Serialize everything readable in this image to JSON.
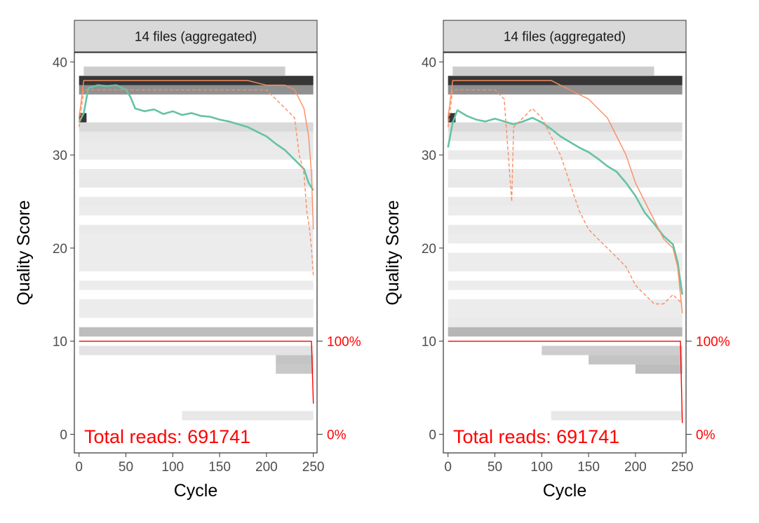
{
  "colors": {
    "mean": "#66c2a5",
    "quantile": "#fc8d62",
    "cumulative": "#ff0000",
    "strip_fill": "#d9d9d9",
    "panel_border": "#333333",
    "axis_text": "#4d4d4d"
  },
  "chart_data": [
    {
      "type": "line",
      "strip_title": "14 files (aggregated)",
      "xlabel": "Cycle",
      "ylabel": "Quality Score",
      "xlim": [
        -5,
        254
      ],
      "ylim": [
        -2,
        41
      ],
      "x_ticks": [
        0,
        50,
        100,
        150,
        200,
        250
      ],
      "y_ticks": [
        0,
        10,
        20,
        30,
        40
      ],
      "right_axis_labels": [
        {
          "y": 10,
          "label": "100%"
        },
        {
          "y": 0,
          "label": "0%"
        }
      ],
      "annotation": "Total reads: 691741",
      "grid": false,
      "heatmap_rows": [
        {
          "q": 38,
          "x": [
            0,
            250
          ],
          "intensity": 0.85
        },
        {
          "q": 37,
          "x": [
            0,
            250
          ],
          "intensity": 0.45
        },
        {
          "q": 39,
          "x": [
            5,
            220
          ],
          "intensity": 0.18
        },
        {
          "q": 34,
          "x": [
            0,
            8
          ],
          "intensity": 0.85
        },
        {
          "q": 33,
          "x": [
            0,
            250
          ],
          "intensity": 0.12
        },
        {
          "q": 32,
          "x": [
            0,
            250
          ],
          "intensity": 0.06
        },
        {
          "q": 31,
          "x": [
            0,
            250
          ],
          "intensity": 0.05
        },
        {
          "q": 30,
          "x": [
            0,
            250
          ],
          "intensity": 0.05
        },
        {
          "q": 28,
          "x": [
            0,
            250
          ],
          "intensity": 0.05
        },
        {
          "q": 27,
          "x": [
            0,
            250
          ],
          "intensity": 0.06
        },
        {
          "q": 25,
          "x": [
            0,
            250
          ],
          "intensity": 0.05
        },
        {
          "q": 24,
          "x": [
            0,
            250
          ],
          "intensity": 0.04
        },
        {
          "q": 22,
          "x": [
            0,
            250
          ],
          "intensity": 0.05
        },
        {
          "q": 21,
          "x": [
            0,
            250
          ],
          "intensity": 0.04
        },
        {
          "q": 20,
          "x": [
            0,
            250
          ],
          "intensity": 0.04
        },
        {
          "q": 19,
          "x": [
            0,
            250
          ],
          "intensity": 0.04
        },
        {
          "q": 18,
          "x": [
            0,
            250
          ],
          "intensity": 0.04
        },
        {
          "q": 16,
          "x": [
            0,
            250
          ],
          "intensity": 0.04
        },
        {
          "q": 14,
          "x": [
            0,
            250
          ],
          "intensity": 0.04
        },
        {
          "q": 13,
          "x": [
            0,
            250
          ],
          "intensity": 0.04
        },
        {
          "q": 11,
          "x": [
            0,
            250
          ],
          "intensity": 0.25
        },
        {
          "q": 9,
          "x": [
            0,
            250
          ],
          "intensity": 0.08
        },
        {
          "q": 8,
          "x": [
            210,
            250
          ],
          "intensity": 0.22
        },
        {
          "q": 7,
          "x": [
            210,
            250
          ],
          "intensity": 0.2
        },
        {
          "q": 2,
          "x": [
            110,
            250
          ],
          "intensity": 0.06
        }
      ],
      "series": [
        {
          "name": "mean",
          "x": [
            0,
            5,
            10,
            20,
            30,
            40,
            50,
            55,
            60,
            70,
            80,
            90,
            100,
            110,
            120,
            130,
            140,
            150,
            160,
            170,
            180,
            190,
            200,
            210,
            220,
            230,
            240,
            245,
            250
          ],
          "y": [
            33.5,
            34.5,
            37.2,
            37.5,
            37.4,
            37.5,
            37,
            36.2,
            35,
            34.7,
            34.9,
            34.4,
            34.7,
            34.3,
            34.5,
            34.2,
            34.1,
            33.8,
            33.6,
            33.3,
            33,
            32.5,
            32,
            31.2,
            30.5,
            29.5,
            28.5,
            27,
            26.2
          ]
        },
        {
          "name": "quantile",
          "x": [
            0,
            5,
            10,
            20,
            30,
            40,
            50,
            60,
            80,
            100,
            120,
            140,
            160,
            180,
            200,
            210,
            220,
            230,
            240,
            245,
            248,
            250
          ],
          "y": [
            34,
            38,
            38,
            38,
            38,
            38,
            38,
            38,
            38,
            38,
            38,
            38,
            38,
            38,
            37.5,
            37.5,
            37.5,
            37,
            35,
            32,
            28,
            22
          ]
        },
        {
          "name": "quantile",
          "x": [
            0,
            5,
            10,
            20,
            30,
            40,
            50,
            60,
            80,
            100,
            120,
            140,
            160,
            180,
            200,
            210,
            220,
            230,
            235,
            240,
            243,
            246,
            248,
            250
          ],
          "y": [
            33,
            37,
            37,
            37,
            37,
            37,
            37,
            37,
            37,
            37,
            37,
            37,
            37,
            37,
            37,
            36,
            35,
            34,
            30,
            28,
            24,
            22,
            20,
            17
          ]
        },
        {
          "name": "cumulative",
          "x": [
            0,
            240,
            248,
            250
          ],
          "y": [
            10,
            10,
            10,
            3.3
          ]
        }
      ]
    },
    {
      "type": "line",
      "strip_title": "14 files (aggregated)",
      "xlabel": "Cycle",
      "ylabel": "Quality Score",
      "xlim": [
        -5,
        254
      ],
      "ylim": [
        -2,
        41
      ],
      "x_ticks": [
        0,
        50,
        100,
        150,
        200,
        250
      ],
      "y_ticks": [
        0,
        10,
        20,
        30,
        40
      ],
      "right_axis_labels": [
        {
          "y": 10,
          "label": "100%"
        },
        {
          "y": 0,
          "label": "0%"
        }
      ],
      "annotation": "Total reads: 691741",
      "grid": false,
      "heatmap_rows": [
        {
          "q": 38,
          "x": [
            0,
            250
          ],
          "intensity": 0.85
        },
        {
          "q": 37,
          "x": [
            0,
            250
          ],
          "intensity": 0.45
        },
        {
          "q": 39,
          "x": [
            5,
            220
          ],
          "intensity": 0.18
        },
        {
          "q": 34,
          "x": [
            0,
            8
          ],
          "intensity": 0.85
        },
        {
          "q": 33,
          "x": [
            0,
            250
          ],
          "intensity": 0.12
        },
        {
          "q": 32,
          "x": [
            0,
            250
          ],
          "intensity": 0.06
        },
        {
          "q": 30,
          "x": [
            0,
            250
          ],
          "intensity": 0.05
        },
        {
          "q": 28,
          "x": [
            0,
            250
          ],
          "intensity": 0.05
        },
        {
          "q": 27,
          "x": [
            0,
            250
          ],
          "intensity": 0.06
        },
        {
          "q": 25,
          "x": [
            0,
            250
          ],
          "intensity": 0.05
        },
        {
          "q": 24,
          "x": [
            0,
            250
          ],
          "intensity": 0.04
        },
        {
          "q": 22,
          "x": [
            0,
            250
          ],
          "intensity": 0.05
        },
        {
          "q": 21,
          "x": [
            0,
            250
          ],
          "intensity": 0.04
        },
        {
          "q": 19,
          "x": [
            0,
            250
          ],
          "intensity": 0.04
        },
        {
          "q": 18,
          "x": [
            0,
            250
          ],
          "intensity": 0.04
        },
        {
          "q": 16,
          "x": [
            0,
            250
          ],
          "intensity": 0.04
        },
        {
          "q": 14,
          "x": [
            0,
            250
          ],
          "intensity": 0.04
        },
        {
          "q": 13,
          "x": [
            0,
            250
          ],
          "intensity": 0.04
        },
        {
          "q": 12,
          "x": [
            0,
            250
          ],
          "intensity": 0.05
        },
        {
          "q": 11,
          "x": [
            0,
            250
          ],
          "intensity": 0.28
        },
        {
          "q": 9,
          "x": [
            100,
            250
          ],
          "intensity": 0.18
        },
        {
          "q": 8,
          "x": [
            150,
            250
          ],
          "intensity": 0.22
        },
        {
          "q": 7,
          "x": [
            200,
            250
          ],
          "intensity": 0.25
        },
        {
          "q": 2,
          "x": [
            110,
            250
          ],
          "intensity": 0.06
        }
      ],
      "series": [
        {
          "name": "mean",
          "x": [
            0,
            5,
            10,
            20,
            30,
            40,
            50,
            60,
            70,
            80,
            90,
            100,
            110,
            120,
            130,
            140,
            150,
            160,
            170,
            180,
            190,
            200,
            210,
            220,
            230,
            240,
            245,
            250
          ],
          "y": [
            30.8,
            33.5,
            34.8,
            34.2,
            33.8,
            33.6,
            33.9,
            33.6,
            33.3,
            33.6,
            34,
            33.5,
            32.8,
            32,
            31.4,
            30.8,
            30.3,
            29.6,
            28.8,
            28.2,
            27,
            25.6,
            23.8,
            22.6,
            21.3,
            20.4,
            18.5,
            15
          ]
        },
        {
          "name": "quantile",
          "x": [
            0,
            5,
            10,
            20,
            30,
            40,
            50,
            60,
            70,
            80,
            90,
            100,
            110,
            120,
            130,
            140,
            150,
            160,
            170,
            180,
            190,
            200,
            210,
            220,
            230,
            240,
            245,
            250
          ],
          "y": [
            34,
            38,
            38,
            38,
            38,
            38,
            38,
            38,
            38,
            38,
            38,
            38,
            38,
            37.5,
            37,
            36.5,
            36,
            35,
            34,
            32,
            30,
            27,
            25,
            23,
            21,
            20,
            18,
            13
          ]
        },
        {
          "name": "quantile",
          "x": [
            0,
            5,
            10,
            20,
            30,
            40,
            50,
            60,
            68,
            70,
            80,
            90,
            100,
            110,
            120,
            130,
            140,
            150,
            160,
            170,
            180,
            190,
            200,
            210,
            220,
            230,
            240,
            250
          ],
          "y": [
            33,
            37,
            37,
            37,
            37,
            37,
            37,
            36,
            25,
            33,
            34,
            35,
            34,
            32,
            30,
            27,
            24,
            22,
            21,
            20,
            19,
            18,
            16,
            15,
            14,
            14,
            15,
            14
          ]
        },
        {
          "name": "cumulative",
          "x": [
            0,
            240,
            248,
            250
          ],
          "y": [
            10,
            10,
            10,
            1.2
          ]
        }
      ]
    }
  ]
}
